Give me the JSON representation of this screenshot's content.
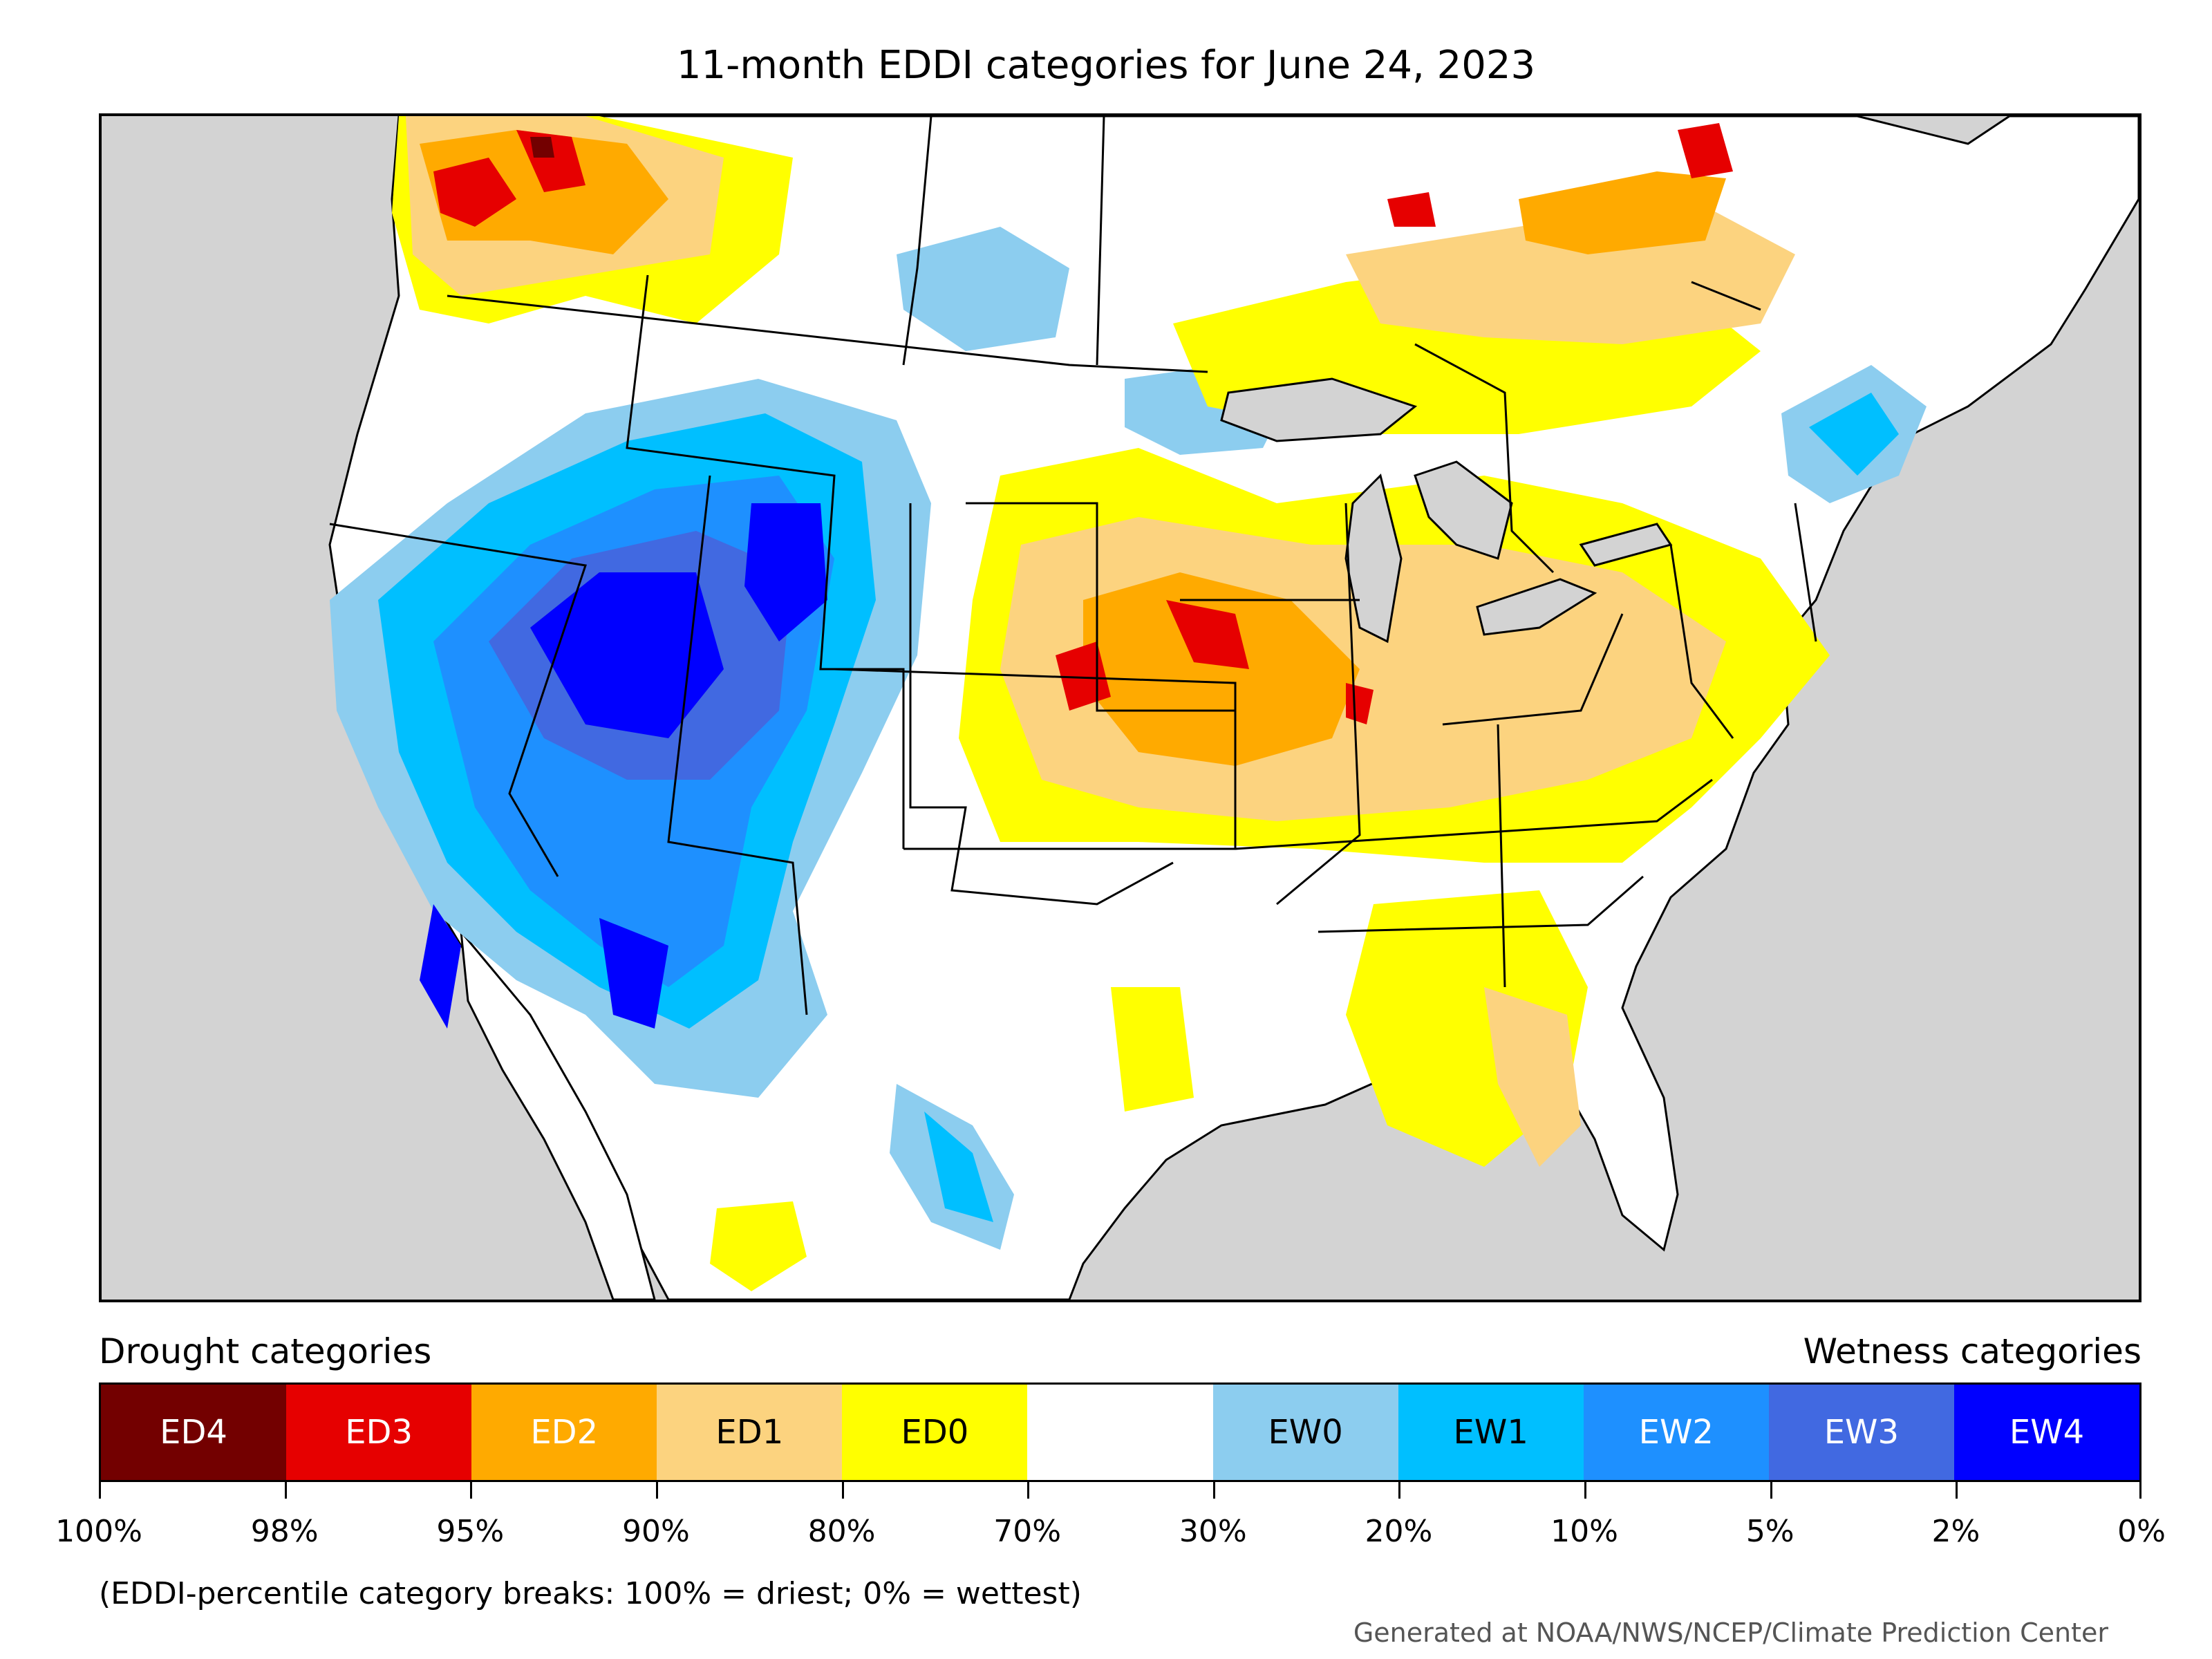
{
  "title": "11-month EDDI categories for June 24, 2023",
  "legend": {
    "drought_heading": "Drought categories",
    "wetness_heading": "Wetness categories",
    "categories": [
      {
        "label": "ED4",
        "color": "#730000",
        "text_color": "#ffffff"
      },
      {
        "label": "ED3",
        "color": "#e60000",
        "text_color": "#ffffff"
      },
      {
        "label": "ED2",
        "color": "#ffaa00",
        "text_color": "#ffffff"
      },
      {
        "label": "ED1",
        "color": "#fcd37f",
        "text_color": "#000000"
      },
      {
        "label": "ED0",
        "color": "#ffff00",
        "text_color": "#000000"
      },
      {
        "label": "",
        "color": "#ffffff",
        "text_color": "#000000"
      },
      {
        "label": "EW0",
        "color": "#8ccdef",
        "text_color": "#000000"
      },
      {
        "label": "EW1",
        "color": "#00bfff",
        "text_color": "#000000"
      },
      {
        "label": "EW2",
        "color": "#1e90ff",
        "text_color": "#ffffff"
      },
      {
        "label": "EW3",
        "color": "#4169e1",
        "text_color": "#ffffff"
      },
      {
        "label": "EW4",
        "color": "#0000ff",
        "text_color": "#ffffff"
      }
    ],
    "percentile_breaks": [
      "100%",
      "98%",
      "95%",
      "90%",
      "80%",
      "70%",
      "30%",
      "20%",
      "10%",
      "5%",
      "2%",
      "0%"
    ]
  },
  "note": "(EDDI-percentile category breaks: 100% = driest; 0% = wettest)",
  "credit": "Generated at NOAA/NWS/NCEP/Climate Prediction Center",
  "map": {
    "ocean_color": "#d3d3d3",
    "land_color": "#ffffff",
    "border_color": "#000000"
  }
}
